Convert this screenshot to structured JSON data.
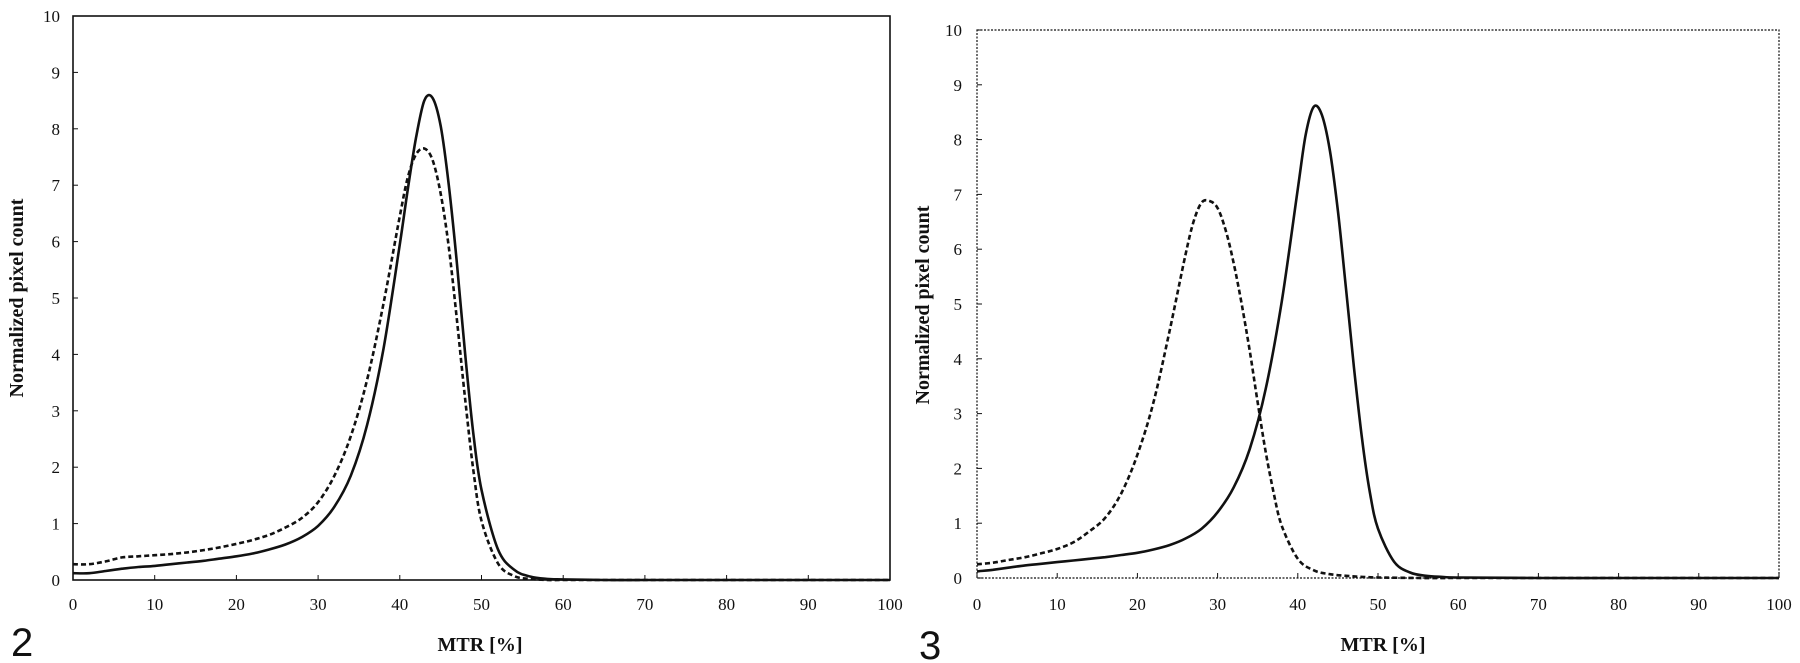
{
  "panels": [
    {
      "label": "2"
    },
    {
      "label": "3"
    }
  ],
  "chart_data": [
    {
      "type": "line",
      "xlabel": "MTR [%]",
      "ylabel": "Normalized pixel count",
      "xlim": [
        0,
        100
      ],
      "ylim": [
        0,
        10
      ],
      "xticks": [
        "0",
        "10",
        "20",
        "30",
        "40",
        "50",
        "60",
        "70",
        "80",
        "90",
        "100"
      ],
      "yticks": [
        "0",
        "1",
        "2",
        "3",
        "4",
        "5",
        "6",
        "7",
        "8",
        "9",
        "10"
      ],
      "grid": false,
      "legend": false,
      "series": [
        {
          "style": "solid",
          "x": [
            0,
            2,
            4,
            6,
            8,
            10,
            12,
            14,
            16,
            18,
            20,
            22,
            24,
            26,
            28,
            30,
            32,
            34,
            36,
            38,
            40,
            41,
            42,
            43,
            44,
            45,
            46,
            47,
            48,
            49,
            50,
            52,
            54,
            56,
            58,
            60,
            65,
            70,
            80,
            90,
            100
          ],
          "y": [
            0.12,
            0.12,
            0.16,
            0.2,
            0.23,
            0.25,
            0.28,
            0.31,
            0.34,
            0.38,
            0.42,
            0.47,
            0.54,
            0.63,
            0.76,
            0.96,
            1.3,
            1.85,
            2.75,
            4.1,
            5.95,
            6.95,
            7.85,
            8.5,
            8.55,
            8.05,
            7.0,
            5.6,
            4.0,
            2.6,
            1.6,
            0.55,
            0.18,
            0.06,
            0.02,
            0.01,
            0.0,
            0.0,
            0.0,
            0.0,
            0.0
          ]
        },
        {
          "style": "dashed",
          "x": [
            0,
            2,
            4,
            6,
            8,
            10,
            12,
            14,
            16,
            18,
            20,
            22,
            24,
            26,
            28,
            30,
            32,
            34,
            36,
            38,
            40,
            41,
            42,
            43,
            44,
            45,
            46,
            47,
            48,
            49,
            50,
            52,
            54,
            56,
            58,
            60,
            70,
            80,
            90,
            100
          ],
          "y": [
            0.28,
            0.28,
            0.33,
            0.4,
            0.42,
            0.44,
            0.46,
            0.49,
            0.53,
            0.58,
            0.64,
            0.71,
            0.8,
            0.93,
            1.1,
            1.38,
            1.85,
            2.55,
            3.55,
            4.9,
            6.45,
            7.15,
            7.55,
            7.65,
            7.45,
            6.85,
            5.9,
            4.6,
            3.2,
            1.95,
            1.05,
            0.3,
            0.07,
            0.02,
            0.0,
            0.0,
            0.0,
            0.0,
            0.0,
            0.0
          ]
        }
      ]
    },
    {
      "type": "line",
      "xlabel": "MTR [%]",
      "ylabel": "Normalized pixel count",
      "xlim": [
        0,
        100
      ],
      "ylim": [
        0,
        10
      ],
      "xticks": [
        "0",
        "10",
        "20",
        "30",
        "40",
        "50",
        "60",
        "70",
        "80",
        "90",
        "100"
      ],
      "yticks": [
        "0",
        "1",
        "2",
        "3",
        "4",
        "5",
        "6",
        "7",
        "8",
        "9",
        "10"
      ],
      "grid": false,
      "legend": false,
      "series": [
        {
          "style": "solid",
          "x": [
            0,
            2,
            4,
            6,
            8,
            10,
            12,
            14,
            16,
            18,
            20,
            22,
            24,
            26,
            28,
            30,
            32,
            34,
            36,
            38,
            40,
            41,
            42,
            43,
            44,
            45,
            46,
            47,
            48,
            49,
            50,
            52,
            54,
            56,
            58,
            60,
            70,
            80,
            90,
            100
          ],
          "y": [
            0.12,
            0.15,
            0.19,
            0.23,
            0.26,
            0.29,
            0.32,
            0.35,
            0.38,
            0.42,
            0.46,
            0.52,
            0.6,
            0.72,
            0.9,
            1.2,
            1.65,
            2.35,
            3.45,
            5.05,
            7.1,
            8.1,
            8.6,
            8.45,
            7.8,
            6.7,
            5.3,
            3.85,
            2.55,
            1.55,
            0.9,
            0.3,
            0.1,
            0.04,
            0.02,
            0.01,
            0.0,
            0.0,
            0.0,
            0.0
          ]
        },
        {
          "style": "dashed",
          "x": [
            0,
            2,
            4,
            6,
            8,
            10,
            12,
            14,
            16,
            18,
            20,
            22,
            24,
            26,
            27,
            28,
            29,
            30,
            31,
            32,
            33,
            34,
            35,
            36,
            37,
            38,
            40,
            42,
            44,
            46,
            48,
            50,
            55,
            60,
            70,
            80,
            90,
            100
          ],
          "y": [
            0.25,
            0.28,
            0.33,
            0.38,
            0.45,
            0.53,
            0.65,
            0.85,
            1.1,
            1.55,
            2.25,
            3.2,
            4.5,
            5.9,
            6.5,
            6.85,
            6.88,
            6.75,
            6.35,
            5.75,
            5.0,
            4.15,
            3.2,
            2.3,
            1.55,
            0.95,
            0.35,
            0.14,
            0.07,
            0.04,
            0.02,
            0.01,
            0.0,
            0.0,
            0.0,
            0.0,
            0.0,
            0.0
          ]
        }
      ]
    }
  ]
}
